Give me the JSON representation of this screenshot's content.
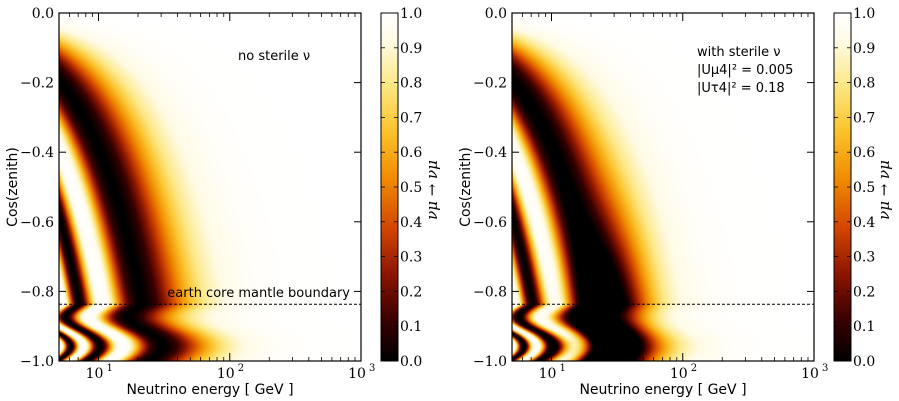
{
  "chart_data": [
    {
      "type": "heatmap",
      "title": "",
      "xlabel": "Neutrino energy [ GeV ]",
      "ylabel": "Cos(zenith)",
      "xscale": "log",
      "xlim": [
        5,
        1000
      ],
      "ylim": [
        -1.0,
        0.0
      ],
      "x_ticks": [
        {
          "value": 10,
          "label": "10",
          "exp": "1"
        },
        {
          "value": 100,
          "label": "10",
          "exp": "2"
        },
        {
          "value": 1000,
          "label": "10",
          "exp": "3"
        }
      ],
      "y_ticks": [
        {
          "value": 0.0,
          "label": "0.0"
        },
        {
          "value": -0.2,
          "label": "−0.2"
        },
        {
          "value": -0.4,
          "label": "−0.4"
        },
        {
          "value": -0.6,
          "label": "−0.6"
        },
        {
          "value": -0.8,
          "label": "−0.8"
        },
        {
          "value": -1.0,
          "label": "−1.0"
        }
      ],
      "colorbar": {
        "label": "νμ → νμ",
        "range": [
          0.0,
          1.0
        ],
        "ticks": [
          "0.0",
          "0.1",
          "0.2",
          "0.3",
          "0.4",
          "0.5",
          "0.6",
          "0.7",
          "0.8",
          "0.9",
          "1.0"
        ]
      },
      "annotation_lines": [
        "no sterile ν"
      ],
      "reference_line": {
        "y": -0.837,
        "style": "dashed",
        "label": "earth core mantle boundary"
      },
      "quantity": "nu_mu survival probability",
      "sterile": false
    },
    {
      "type": "heatmap",
      "title": "",
      "xlabel": "Neutrino energy [ GeV ]",
      "ylabel": "Cos(zenith)",
      "xscale": "log",
      "xlim": [
        5,
        1000
      ],
      "ylim": [
        -1.0,
        0.0
      ],
      "x_ticks": [
        {
          "value": 10,
          "label": "10",
          "exp": "1"
        },
        {
          "value": 100,
          "label": "10",
          "exp": "2"
        },
        {
          "value": 1000,
          "label": "10",
          "exp": "3"
        }
      ],
      "y_ticks": [
        {
          "value": 0.0,
          "label": "0.0"
        },
        {
          "value": -0.2,
          "label": "−0.2"
        },
        {
          "value": -0.4,
          "label": "−0.4"
        },
        {
          "value": -0.6,
          "label": "−0.6"
        },
        {
          "value": -0.8,
          "label": "−0.8"
        },
        {
          "value": -1.0,
          "label": "−1.0"
        }
      ],
      "colorbar": {
        "label": "νμ → νμ",
        "range": [
          0.0,
          1.0
        ],
        "ticks": [
          "0.0",
          "0.1",
          "0.2",
          "0.3",
          "0.4",
          "0.5",
          "0.6",
          "0.7",
          "0.8",
          "0.9",
          "1.0"
        ]
      },
      "annotation_lines": [
        "with sterile ν",
        "|Uμ4|² = 0.005",
        "|Uτ4|² = 0.18"
      ],
      "reference_line": {
        "y": -0.837,
        "style": "dashed",
        "label": ""
      },
      "quantity": "nu_mu survival probability",
      "sterile": true
    }
  ],
  "colors": {
    "colormap": [
      "#000000",
      "#3a0000",
      "#8b1500",
      "#d24500",
      "#f08a00",
      "#fbc32c",
      "#fde98a",
      "#fffbe6",
      "#ffffff"
    ],
    "axis": "#000000"
  }
}
